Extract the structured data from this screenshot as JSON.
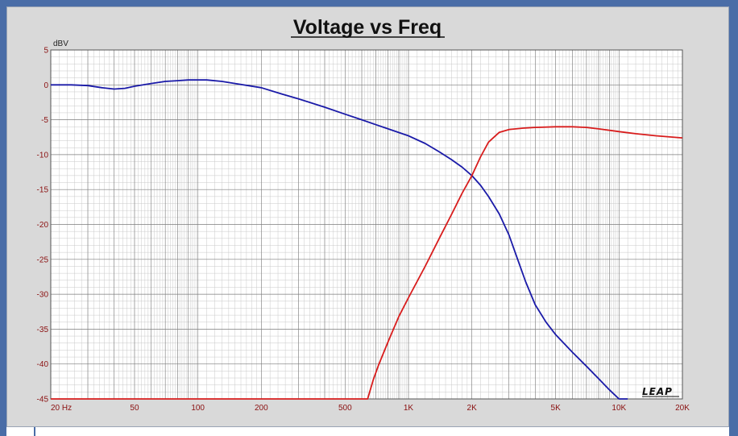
{
  "chart_data": {
    "type": "line",
    "title": "Voltage vs Freq",
    "ylabel": "dBV",
    "xlabel": "",
    "xscale": "log",
    "xlim": [
      20,
      20000
    ],
    "ylim": [
      -45,
      5
    ],
    "grid": true,
    "y_ticks": [
      5,
      0,
      -5,
      -10,
      -15,
      -20,
      -25,
      -30,
      -35,
      -40,
      -45
    ],
    "y_tick_labels": [
      "5",
      "0",
      "-5",
      "-10",
      "-15",
      "-20",
      "-25",
      "-30",
      "-35",
      "-40",
      "-45"
    ],
    "x_ticks": [
      20,
      50,
      100,
      200,
      500,
      1000,
      2000,
      5000,
      10000,
      20000
    ],
    "x_tick_labels": [
      "20  Hz",
      "50",
      "100",
      "200",
      "500",
      "1K",
      "2K",
      "5K",
      "10K",
      "20K"
    ],
    "series": [
      {
        "color": "#1a1aa8",
        "x": [
          20,
          25,
          30,
          35,
          40,
          45,
          50,
          60,
          70,
          80,
          90,
          100,
          110,
          130,
          150,
          200,
          250,
          300,
          400,
          500,
          600,
          700,
          800,
          1000,
          1200,
          1400,
          1600,
          1800,
          2000,
          2200,
          2400,
          2700,
          3000,
          3300,
          3600,
          4000,
          4500,
          5000,
          6000,
          7000,
          8000,
          9000,
          10000,
          11000
        ],
        "y": [
          0,
          0,
          -0.1,
          -0.4,
          -0.6,
          -0.5,
          -0.2,
          0.2,
          0.5,
          0.6,
          0.7,
          0.7,
          0.7,
          0.5,
          0.2,
          -0.4,
          -1.3,
          -2.0,
          -3.2,
          -4.2,
          -5.0,
          -5.7,
          -6.3,
          -7.3,
          -8.4,
          -9.6,
          -10.7,
          -11.8,
          -13.0,
          -14.4,
          -16.0,
          -18.5,
          -21.5,
          -25.0,
          -28.2,
          -31.5,
          -34.0,
          -35.8,
          -38.3,
          -40.3,
          -42.1,
          -43.7,
          -45.0,
          -45.0
        ]
      },
      {
        "color": "#d81c1c",
        "x": [
          20,
          50,
          100,
          200,
          500,
          600,
          640,
          680,
          720,
          800,
          900,
          1000,
          1200,
          1400,
          1600,
          1800,
          2000,
          2200,
          2400,
          2700,
          3000,
          3500,
          4000,
          5000,
          6000,
          7000,
          8000,
          10000,
          12000,
          15000,
          20000
        ],
        "y": [
          -45,
          -45,
          -45,
          -45,
          -45,
          -45,
          -45,
          -42.3,
          -40.2,
          -36.8,
          -33.2,
          -30.5,
          -26.0,
          -22.0,
          -18.6,
          -15.5,
          -13.0,
          -10.3,
          -8.2,
          -6.8,
          -6.4,
          -6.2,
          -6.1,
          -6.0,
          -6.0,
          -6.1,
          -6.3,
          -6.7,
          -7.0,
          -7.3,
          -7.6
        ]
      }
    ],
    "annotation": "LEAP"
  }
}
